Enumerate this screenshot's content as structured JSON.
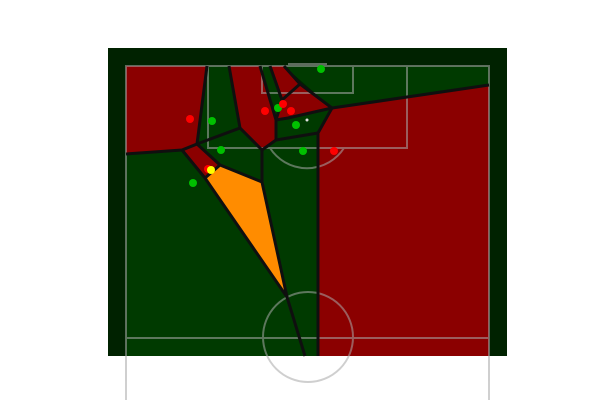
{
  "colors": {
    "figure_background": "#ffffff",
    "pitch_background": "#002200",
    "team_control_area": "#003a00",
    "opponent_control_area": "#8b0000",
    "highlighted_control_area": "#ff8c00",
    "cell_border": "#0f0f0f",
    "pitch_line": "#a9a9a9",
    "team_player": "#00c000",
    "opponent_player": "#ff0000",
    "highlighted_player": "#ffff00",
    "ball": "#e0e0e0"
  },
  "figure": {
    "type": "football pitch voronoi control map"
  }
}
